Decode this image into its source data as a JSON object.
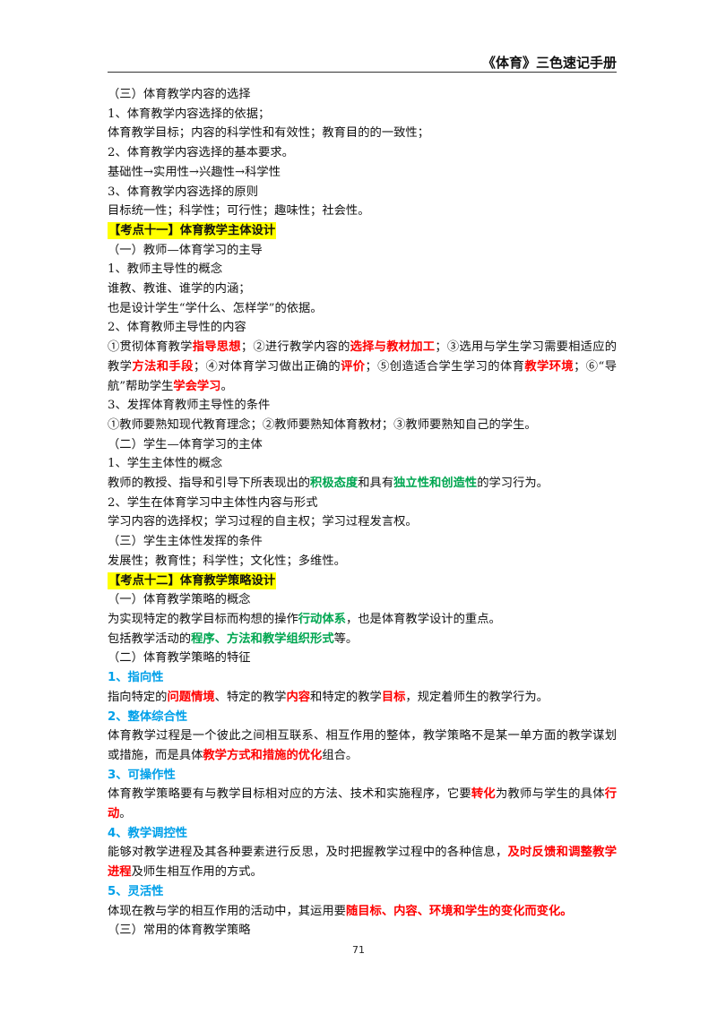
{
  "header": {
    "title": "《体育》三色速记手册"
  },
  "lines": [
    [
      {
        "t": "（三）体育教学内容的选择"
      }
    ],
    [
      {
        "t": "1、体育教学内容选择的依据；"
      }
    ],
    [
      {
        "t": "体育教学目标；内容的科学性和有效性；教育目的的一致性；"
      }
    ],
    [
      {
        "t": "2、体育教学内容选择的基本要求。"
      }
    ],
    [
      {
        "t": "基础性→实用性→兴趣性→科学性"
      }
    ],
    [
      {
        "t": "3、体育教学内容选择的原则"
      }
    ],
    [
      {
        "t": "目标统一性；科学性；可行性；趣味性；社会性。"
      }
    ],
    [
      {
        "t": "【考点十一】体育教学主体设计",
        "s": "kd"
      }
    ],
    [
      {
        "t": "（一）教师—体育学习的主导"
      }
    ],
    [
      {
        "t": "1、教师主导性的概念"
      }
    ],
    [
      {
        "t": "谁教、教谁、谁学的内涵；"
      }
    ],
    [
      {
        "t": "也是设计学生“学什么、怎样学”的依据。"
      }
    ],
    [
      {
        "t": "2、体育教师主导性的内容"
      }
    ],
    {
      "wrap": true,
      "segs": [
        {
          "t": "①贯彻体育教学"
        },
        {
          "t": "指导思想",
          "s": "red"
        },
        {
          "t": "；②进行教学内容的"
        },
        {
          "t": "选择与教材加工",
          "s": "red"
        },
        {
          "t": "；③选用与学生学习需要相适应的教学"
        },
        {
          "t": "方法和手段",
          "s": "red"
        },
        {
          "t": "；④对体育学习做出正确的"
        },
        {
          "t": "评价",
          "s": "red"
        },
        {
          "t": "；⑤创造适合学生学习的体育"
        },
        {
          "t": "教学环境",
          "s": "red"
        },
        {
          "t": "；⑥“导航”帮助学生"
        },
        {
          "t": "学会学习",
          "s": "red"
        },
        {
          "t": "。"
        }
      ]
    },
    [
      {
        "t": "3、发挥体育教师主导性的条件"
      }
    ],
    [
      {
        "t": "①教师要熟知现代教育理念；②教师要熟知体育教材；③教师要熟知自己的学生。"
      }
    ],
    [
      {
        "t": "（二）学生—体育学习的主体"
      }
    ],
    [
      {
        "t": "1、学生主体性的概念"
      }
    ],
    [
      {
        "t": "教师的教授、指导和引导下所表现出的"
      },
      {
        "t": "积极态度",
        "s": "green"
      },
      {
        "t": "和具有"
      },
      {
        "t": "独立性和创造性",
        "s": "green"
      },
      {
        "t": "的学习行为。"
      }
    ],
    [
      {
        "t": "2、学生在体育学习中主体性内容与形式"
      }
    ],
    [
      {
        "t": "学习内容的选择权；学习过程的自主权；学习过程发言权。"
      }
    ],
    [
      {
        "t": "（三）学生主体性发挥的条件"
      }
    ],
    [
      {
        "t": "发展性；教育性；科学性；文化性；多维性。"
      }
    ],
    [
      {
        "t": "【考点十二】体育教学策略设计",
        "s": "kd"
      }
    ],
    [
      {
        "t": "（一）体育教学策略的概念"
      }
    ],
    [
      {
        "t": "为实现特定的教学目标而构想的操作"
      },
      {
        "t": "行动体系",
        "s": "green"
      },
      {
        "t": "，也是体育教学设计的重点。"
      }
    ],
    [
      {
        "t": "包括教学活动的"
      },
      {
        "t": "程序、方法和教学组织形式",
        "s": "green"
      },
      {
        "t": "等。"
      }
    ],
    [
      {
        "t": "（二）体育教学策略的特征"
      }
    ],
    [
      {
        "t": "1、指向性",
        "s": "blue"
      }
    ],
    [
      {
        "t": "指向特定的"
      },
      {
        "t": "问题情境",
        "s": "red"
      },
      {
        "t": "、特定的教学"
      },
      {
        "t": "内容",
        "s": "red"
      },
      {
        "t": "和特定的教学"
      },
      {
        "t": "目标",
        "s": "red"
      },
      {
        "t": "，规定着师生的教学行为。"
      }
    ],
    [
      {
        "t": "2、整体综合性",
        "s": "blue"
      }
    ],
    {
      "wrap": true,
      "segs": [
        {
          "t": "体育教学过程是一个彼此之间相互联系、相互作用的整体，教学策略不是某一单方面的教学谋划或措施，而是具体"
        },
        {
          "t": "教学方式和措施的优化",
          "s": "red"
        },
        {
          "t": "组合。"
        }
      ]
    },
    [
      {
        "t": "3、可操作性",
        "s": "blue"
      }
    ],
    {
      "wrap": true,
      "segs": [
        {
          "t": "体育教学策略要有与教学目标相对应的方法、技术和实施程序，它要"
        },
        {
          "t": "转化",
          "s": "red"
        },
        {
          "t": "为教师与学生的具体"
        },
        {
          "t": "行动",
          "s": "red"
        },
        {
          "t": "。"
        }
      ]
    },
    [
      {
        "t": "4、教学调控性",
        "s": "blue"
      }
    ],
    {
      "wrap": true,
      "segs": [
        {
          "t": "能够对教学进程及其各种要素进行反思，及时把握教学过程中的各种信息，"
        },
        {
          "t": "及时反馈和调整教学进程",
          "s": "red"
        },
        {
          "t": "及师生相互作用的方式。"
        }
      ]
    },
    [
      {
        "t": "5、灵活性",
        "s": "blue"
      }
    ],
    [
      {
        "t": "体现在教与学的相互作用的活动中，其运用要"
      },
      {
        "t": "随目标、内容、环境和学生的变化而变化。",
        "s": "red"
      }
    ],
    [
      {
        "t": "（三）常用的体育教学策略"
      }
    ]
  ],
  "footer": {
    "page_number": "71"
  }
}
